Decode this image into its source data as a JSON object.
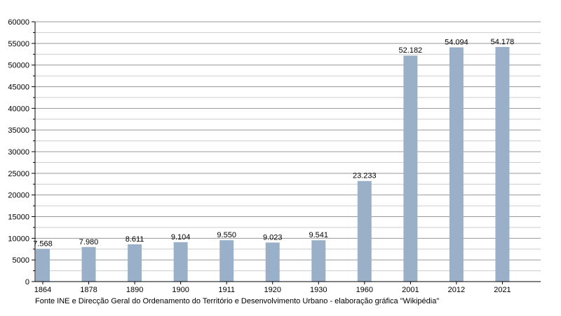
{
  "chart_data": {
    "type": "bar",
    "categories": [
      "1864",
      "1878",
      "1890",
      "1900",
      "1911",
      "1920",
      "1930",
      "1960",
      "2001",
      "2012",
      "2021"
    ],
    "values": [
      7568,
      7980,
      8611,
      9104,
      9550,
      9023,
      9541,
      23233,
      52182,
      54094,
      54178
    ],
    "data_labels": [
      "7.568",
      "7.980",
      "8.611",
      "9.104",
      "9.550",
      "9.023",
      "9.541",
      "23.233",
      "52.182",
      "54.094",
      "54.178"
    ],
    "title": "",
    "xlabel": "",
    "ylabel": "",
    "ylim": [
      0,
      60000
    ],
    "y_ticks": [
      0,
      5000,
      10000,
      15000,
      20000,
      25000,
      30000,
      35000,
      40000,
      45000,
      50000,
      55000,
      60000
    ],
    "grid": true,
    "bar_color": "#9ab0c8",
    "grid_major_color": "#999999",
    "grid_minor_color": "#cccccc"
  },
  "source_note": "Fonte INE e Direcção Geral do Ordenamento do Território e Desenvolvimento Urbano - elaboração gráfica \"Wikipédia\""
}
